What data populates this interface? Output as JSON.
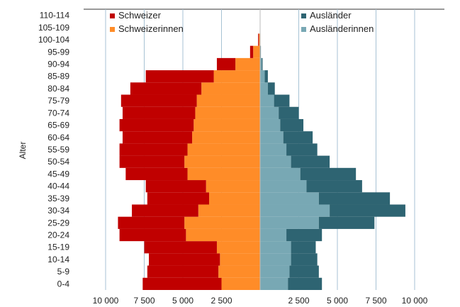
{
  "chart_data": {
    "type": "bar",
    "subtype": "population-pyramid",
    "ylabel": "Alter",
    "categories": [
      "0-4",
      "5-9",
      "10-14",
      "15-19",
      "20-24",
      "25-29",
      "30-34",
      "35-39",
      "40-44",
      "45-49",
      "50-54",
      "55-59",
      "60-64",
      "65-69",
      "70-74",
      "75-79",
      "80-84",
      "85-89",
      "90-94",
      "95-99",
      "100-104",
      "105-109",
      "110-114"
    ],
    "x_ticks_left": [
      "10 000",
      "7 500",
      "5 000",
      "2 500"
    ],
    "x_ticks_right": [
      "2 500",
      "5 000",
      "7 500",
      "10 000"
    ],
    "x_max": 10000,
    "grid": true,
    "legend_position": "top",
    "series": [
      {
        "name": "Schweizer",
        "side": "left",
        "color": "#c00000",
        "values": [
          5100,
          4600,
          4600,
          4700,
          4300,
          4300,
          4300,
          4000,
          3900,
          4000,
          4200,
          4400,
          4500,
          4800,
          4700,
          4900,
          4600,
          4400,
          1200,
          200,
          50,
          10,
          5
        ]
      },
      {
        "name": "Schweizerinnen",
        "side": "left",
        "color": "#ff8c28",
        "values": [
          2500,
          2700,
          2600,
          2800,
          4800,
          4900,
          4000,
          3300,
          3500,
          4700,
          4900,
          4700,
          4400,
          4300,
          4200,
          4100,
          3800,
          3000,
          1600,
          450,
          80,
          10,
          5
        ]
      },
      {
        "name": "Ausländer",
        "side": "right",
        "color": "#2e6472",
        "values": [
          2200,
          1900,
          1700,
          1600,
          2300,
          3600,
          4900,
          4600,
          3600,
          3600,
          2500,
          2000,
          1900,
          1500,
          1300,
          1000,
          450,
          200,
          60,
          20,
          5,
          2,
          1
        ],
        "note": "outer band stacked beyond Ausländerinnen"
      },
      {
        "name": "Ausländerinnen",
        "side": "right",
        "color": "#78a8b4",
        "values": [
          1800,
          1900,
          2000,
          2000,
          1700,
          3800,
          4500,
          3800,
          3000,
          2600,
          2000,
          1700,
          1500,
          1300,
          1200,
          900,
          500,
          300,
          100,
          30,
          10,
          2,
          1
        ]
      }
    ]
  }
}
